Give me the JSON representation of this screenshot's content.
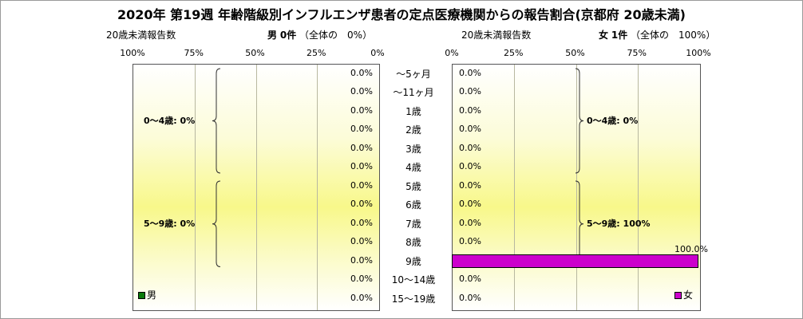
{
  "title": "2020年 第19週 年齢階級別インフルエンザ患者の定点医療機関からの報告割合(京都府 20歳未満)",
  "header": {
    "left_label": "20歳未満報告数",
    "male_summary_label": "男",
    "male_summary_count": "0件",
    "male_summary_share": "（全体の　0%）",
    "right_label": "20歳未満報告数",
    "female_summary_label": "女",
    "female_summary_count": "1件",
    "female_summary_share": "（全体の　100%）"
  },
  "chart_data": [
    {
      "type": "bar",
      "orientation": "horizontal",
      "direction": "right-to-left",
      "series": [
        {
          "name": "男",
          "values": [
            0,
            0,
            0,
            0,
            0,
            0,
            0,
            0,
            0,
            0,
            0,
            0,
            0
          ],
          "color": "#0a7a0a"
        }
      ],
      "categories": [
        "〜5ヶ月",
        "〜11ヶ月",
        "1歳",
        "2歳",
        "3歳",
        "4歳",
        "5歳",
        "6歳",
        "7歳",
        "8歳",
        "9歳",
        "10〜14歳",
        "15〜19歳"
      ],
      "value_labels": [
        "0.0%",
        "0.0%",
        "0.0%",
        "0.0%",
        "0.0%",
        "0.0%",
        "0.0%",
        "0.0%",
        "0.0%",
        "0.0%",
        "0.0%",
        "0.0%",
        "0.0%"
      ],
      "xlim": [
        0,
        100
      ],
      "x_ticks": [
        "100%",
        "75%",
        "50%",
        "25%",
        "0%"
      ],
      "groups": [
        {
          "label": "0〜4歳: 0%",
          "from": 0,
          "to": 5
        },
        {
          "label": "5〜9歳: 0%",
          "from": 6,
          "to": 10
        }
      ],
      "legend": "bottom-left"
    },
    {
      "type": "bar",
      "orientation": "horizontal",
      "direction": "left-to-right",
      "series": [
        {
          "name": "女",
          "values": [
            0,
            0,
            0,
            0,
            0,
            0,
            0,
            0,
            0,
            0,
            100,
            0,
            0
          ],
          "color": "#cc00cc"
        }
      ],
      "categories": [
        "〜5ヶ月",
        "〜11ヶ月",
        "1歳",
        "2歳",
        "3歳",
        "4歳",
        "5歳",
        "6歳",
        "7歳",
        "8歳",
        "9歳",
        "10〜14歳",
        "15〜19歳"
      ],
      "value_labels": [
        "0.0%",
        "0.0%",
        "0.0%",
        "0.0%",
        "0.0%",
        "0.0%",
        "0.0%",
        "0.0%",
        "0.0%",
        "0.0%",
        "100.0%",
        "0.0%",
        "0.0%"
      ],
      "xlim": [
        0,
        100
      ],
      "x_ticks": [
        "0%",
        "25%",
        "50%",
        "75%",
        "100%"
      ],
      "groups": [
        {
          "label": "0〜4歳: 0%",
          "from": 0,
          "to": 5
        },
        {
          "label": "5〜9歳: 100%",
          "from": 6,
          "to": 10
        }
      ],
      "legend": "bottom-right"
    }
  ]
}
